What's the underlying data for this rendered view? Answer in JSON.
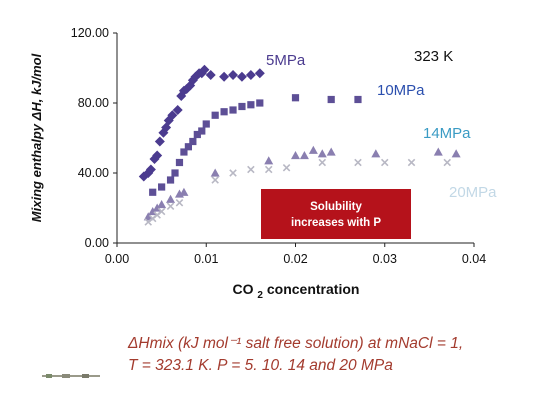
{
  "chart_data": {
    "type": "scatter",
    "ylabel": "Mixing enthalpy ΔH, kJ/mol",
    "xlabel": "CO₂ concentration",
    "xlim": [
      0.0,
      0.04
    ],
    "ylim": [
      0.0,
      120.0
    ],
    "x_ticks": [
      "0.00",
      "0.01",
      "0.02",
      "0.03",
      "0.04"
    ],
    "y_ticks": [
      "0.00",
      "40.00",
      "80.00",
      "120.00"
    ],
    "grid": false,
    "temperature_label": "323 K",
    "annotation": [
      "Solubility",
      "increases with P"
    ],
    "series": [
      {
        "name": "5MPa",
        "marker": "diamond",
        "color": "#4b3b8f",
        "label_color": "#4b3b8f",
        "points": [
          [
            0.003,
            38
          ],
          [
            0.0035,
            40
          ],
          [
            0.0038,
            42
          ],
          [
            0.0042,
            48
          ],
          [
            0.0045,
            50
          ],
          [
            0.0048,
            58
          ],
          [
            0.0052,
            63
          ],
          [
            0.0055,
            66
          ],
          [
            0.0058,
            70
          ],
          [
            0.0062,
            73
          ],
          [
            0.0068,
            76
          ],
          [
            0.0072,
            84
          ],
          [
            0.0075,
            87
          ],
          [
            0.0078,
            88
          ],
          [
            0.0082,
            90
          ],
          [
            0.0085,
            93
          ],
          [
            0.0088,
            95
          ],
          [
            0.0092,
            97
          ],
          [
            0.0095,
            97
          ],
          [
            0.0098,
            99
          ],
          [
            0.0105,
            96
          ],
          [
            0.012,
            95
          ],
          [
            0.013,
            96
          ],
          [
            0.014,
            95
          ],
          [
            0.015,
            96
          ],
          [
            0.016,
            97
          ]
        ]
      },
      {
        "name": "10MPa",
        "marker": "square",
        "color": "#5d4f96",
        "label_color": "#2b4fae",
        "points": [
          [
            0.004,
            29
          ],
          [
            0.005,
            32
          ],
          [
            0.006,
            36
          ],
          [
            0.0065,
            40
          ],
          [
            0.007,
            46
          ],
          [
            0.0075,
            52
          ],
          [
            0.008,
            55
          ],
          [
            0.0085,
            58
          ],
          [
            0.009,
            62
          ],
          [
            0.0095,
            64
          ],
          [
            0.01,
            68
          ],
          [
            0.011,
            73
          ],
          [
            0.012,
            75
          ],
          [
            0.013,
            76
          ],
          [
            0.014,
            78
          ],
          [
            0.015,
            79
          ],
          [
            0.016,
            80
          ],
          [
            0.02,
            83
          ],
          [
            0.024,
            82
          ],
          [
            0.027,
            82
          ]
        ]
      },
      {
        "name": "14MPa",
        "marker": "triangle",
        "color": "#8a7fb0",
        "label_color": "#3a9bc4",
        "points": [
          [
            0.0035,
            15
          ],
          [
            0.004,
            18
          ],
          [
            0.0045,
            20
          ],
          [
            0.005,
            22
          ],
          [
            0.006,
            25
          ],
          [
            0.007,
            28
          ],
          [
            0.0075,
            29
          ],
          [
            0.011,
            40
          ],
          [
            0.017,
            47
          ],
          [
            0.02,
            50
          ],
          [
            0.021,
            50
          ],
          [
            0.022,
            53
          ],
          [
            0.023,
            51
          ],
          [
            0.024,
            52
          ],
          [
            0.029,
            51
          ],
          [
            0.036,
            52
          ],
          [
            0.038,
            51
          ]
        ]
      },
      {
        "name": "20MPa",
        "marker": "x",
        "color": "#b8b8c4",
        "label_color": "#c2d8e6",
        "points": [
          [
            0.0035,
            12
          ],
          [
            0.004,
            14
          ],
          [
            0.0045,
            16
          ],
          [
            0.005,
            18
          ],
          [
            0.006,
            21
          ],
          [
            0.007,
            23
          ],
          [
            0.011,
            36
          ],
          [
            0.013,
            40
          ],
          [
            0.015,
            42
          ],
          [
            0.017,
            42
          ],
          [
            0.019,
            43
          ],
          [
            0.023,
            46
          ],
          [
            0.027,
            46
          ],
          [
            0.03,
            46
          ],
          [
            0.033,
            46
          ],
          [
            0.037,
            46
          ]
        ]
      }
    ]
  },
  "caption": {
    "line1": "ΔHmix (kJ mol⁻¹ salt free solution) at mNaCl = 1,",
    "line2": "T = 323.1 K. P = 5. 10. 14 and 20 MPa"
  },
  "colors": {
    "box_fill": "#b5121b",
    "caption_text": "#a33b2e"
  }
}
